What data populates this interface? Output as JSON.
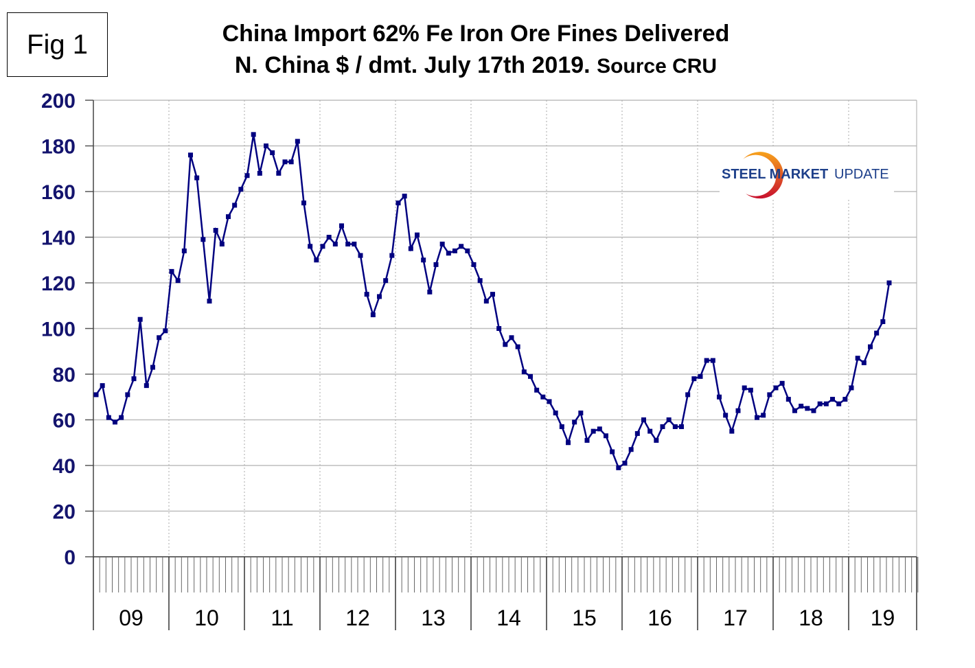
{
  "figure_label": "Fig 1",
  "title_line1": "China Import 62% Fe Iron Ore Fines Delivered",
  "title_line2": "N. China $ / dmt. July 17th 2019.",
  "title_source": "Source CRU",
  "logo": {
    "text_bold": "STEEL MARKET",
    "text_light": "UPDATE",
    "colors": {
      "text": "#1d3f8a",
      "arc_start": "#f7a21b",
      "arc_end": "#c8102e"
    }
  },
  "chart_data": {
    "type": "line",
    "title": "China Import 62% Fe Iron Ore Fines Delivered N. China $ / dmt. July 17th 2019. Source CRU",
    "xlabel": "",
    "ylabel": "",
    "ylim": [
      0,
      200
    ],
    "yticks": [
      0,
      20,
      40,
      60,
      80,
      100,
      120,
      140,
      160,
      180,
      200
    ],
    "year_labels": [
      "09",
      "10",
      "11",
      "12",
      "13",
      "14",
      "15",
      "16",
      "17",
      "18",
      "19"
    ],
    "x_start": "2009-01",
    "x_frequency": "monthly",
    "x_end": "2019-07",
    "grid": {
      "horizontal": "solid",
      "vertical": "dotted"
    },
    "series_color": "#000080",
    "marker": "square",
    "values": [
      71,
      75,
      61,
      59,
      61,
      71,
      78,
      104,
      75,
      83,
      96,
      99,
      125,
      121,
      134,
      176,
      166,
      139,
      112,
      143,
      137,
      149,
      154,
      161,
      167,
      185,
      168,
      180,
      177,
      168,
      173,
      173,
      182,
      155,
      136,
      130,
      136,
      140,
      137,
      145,
      137,
      137,
      132,
      115,
      106,
      114,
      121,
      132,
      155,
      158,
      135,
      141,
      130,
      116,
      128,
      137,
      133,
      134,
      136,
      134,
      128,
      121,
      112,
      115,
      100,
      93,
      96,
      92,
      81,
      79,
      73,
      70,
      68,
      63,
      57,
      50,
      59,
      63,
      51,
      55,
      56,
      53,
      46,
      39,
      41,
      47,
      54,
      60,
      55,
      51,
      57,
      60,
      57,
      57,
      71,
      78,
      79,
      86,
      86,
      70,
      62,
      55,
      64,
      74,
      73,
      61,
      62,
      71,
      74,
      76,
      69,
      64,
      66,
      65,
      64,
      67,
      67,
      69,
      67,
      69,
      74,
      87,
      85,
      92,
      98,
      103,
      120
    ]
  }
}
